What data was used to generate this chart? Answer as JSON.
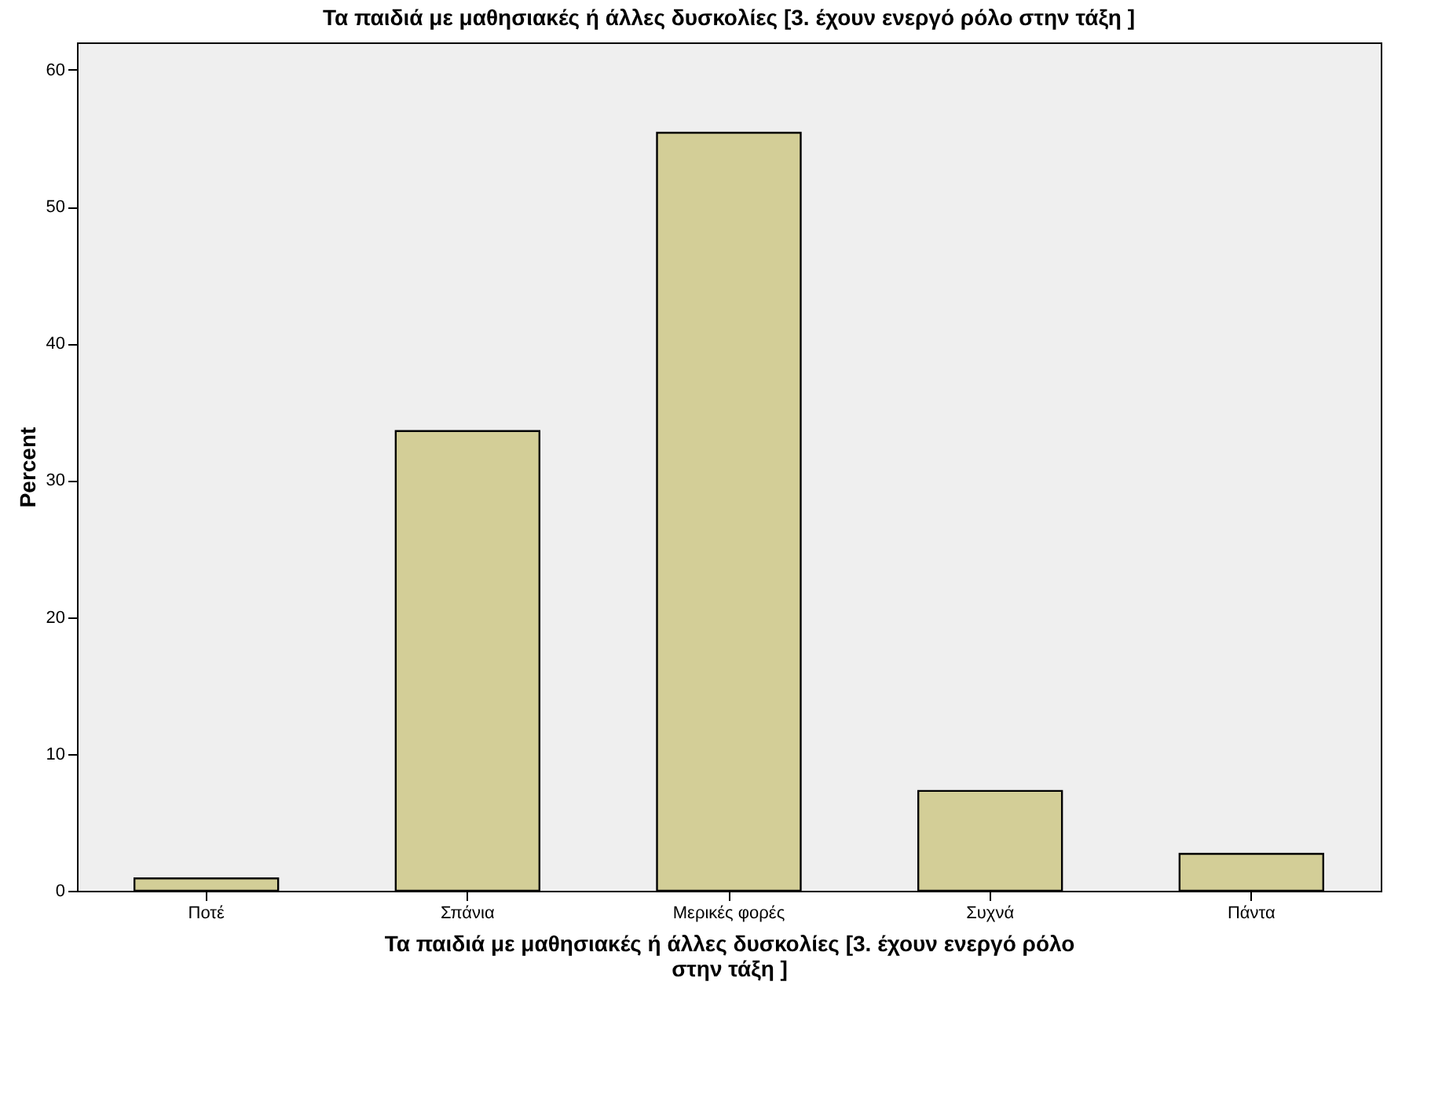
{
  "chart_data": {
    "type": "bar",
    "title": "Τα παιδιά με μαθησιακές ή άλλες δυσκολίες  [3. έχουν  ενεργό ρόλο στην τάξη ]",
    "xlabel": "Τα παιδιά με μαθησιακές ή άλλες δυσκολίες  [3. έχουν  ενεργό ρόλο στην τάξη ]",
    "ylabel": "Percent",
    "categories": [
      "Ποτέ",
      "Σπάνια",
      "Μερικές φορές",
      "Συχνά",
      "Πάντα"
    ],
    "values": [
      0.9,
      33.6,
      55.4,
      7.3,
      2.7
    ],
    "color": "#d3ce97",
    "ylim": [
      0,
      62
    ],
    "yticks": [
      0,
      10,
      20,
      30,
      40,
      50,
      60
    ],
    "grid": false
  }
}
